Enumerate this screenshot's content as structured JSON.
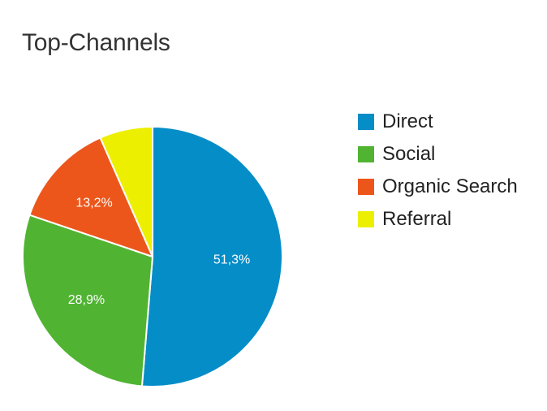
{
  "chart_data": {
    "type": "pie",
    "title": "Top-Channels",
    "legend_position": "right",
    "slices": [
      {
        "name": "Direct",
        "value": 51.3,
        "label": "51,3%",
        "color": "#058dc7",
        "show_label": true
      },
      {
        "name": "Social",
        "value": 28.9,
        "label": "28,9%",
        "color": "#50b432",
        "show_label": true
      },
      {
        "name": "Organic Search",
        "value": 13.2,
        "label": "13,2%",
        "color": "#ed561b",
        "show_label": true
      },
      {
        "name": "Referral",
        "value": 6.6,
        "label": "",
        "color": "#edef00",
        "show_label": false
      }
    ]
  }
}
